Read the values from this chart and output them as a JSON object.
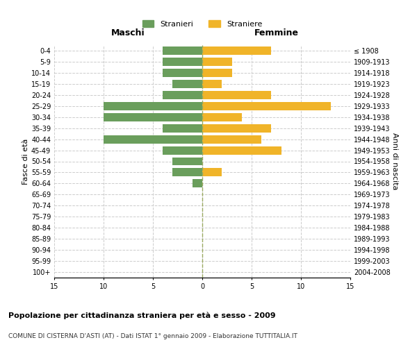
{
  "age_groups": [
    "0-4",
    "5-9",
    "10-14",
    "15-19",
    "20-24",
    "25-29",
    "30-34",
    "35-39",
    "40-44",
    "45-49",
    "50-54",
    "55-59",
    "60-64",
    "65-69",
    "70-74",
    "75-79",
    "80-84",
    "85-89",
    "90-94",
    "95-99",
    "100+"
  ],
  "birth_years": [
    "2004-2008",
    "1999-2003",
    "1994-1998",
    "1989-1993",
    "1984-1988",
    "1979-1983",
    "1974-1978",
    "1969-1973",
    "1964-1968",
    "1959-1963",
    "1954-1958",
    "1949-1953",
    "1944-1948",
    "1939-1943",
    "1934-1938",
    "1929-1933",
    "1924-1928",
    "1919-1923",
    "1914-1918",
    "1909-1913",
    "≤ 1908"
  ],
  "males": [
    4,
    4,
    4,
    3,
    4,
    10,
    10,
    4,
    10,
    4,
    3,
    3,
    1,
    0,
    0,
    0,
    0,
    0,
    0,
    0,
    0
  ],
  "females": [
    7,
    3,
    3,
    2,
    7,
    13,
    4,
    7,
    6,
    8,
    0,
    2,
    0,
    0,
    0,
    0,
    0,
    0,
    0,
    0,
    0
  ],
  "male_color": "#6a9e5c",
  "female_color": "#f0b429",
  "background_color": "#ffffff",
  "grid_color": "#cccccc",
  "center_line_color": "#9aaa60",
  "title": "Popolazione per cittadinanza straniera per età e sesso - 2009",
  "subtitle": "COMUNE DI CISTERNA D'ASTI (AT) - Dati ISTAT 1° gennaio 2009 - Elaborazione TUTTITALIA.IT",
  "xlabel_left": "Maschi",
  "xlabel_right": "Femmine",
  "ylabel_left": "Fasce di età",
  "ylabel_right": "Anni di nascita",
  "legend_stranieri": "Stranieri",
  "legend_straniere": "Straniere",
  "xlim": 15,
  "bar_height": 0.75
}
